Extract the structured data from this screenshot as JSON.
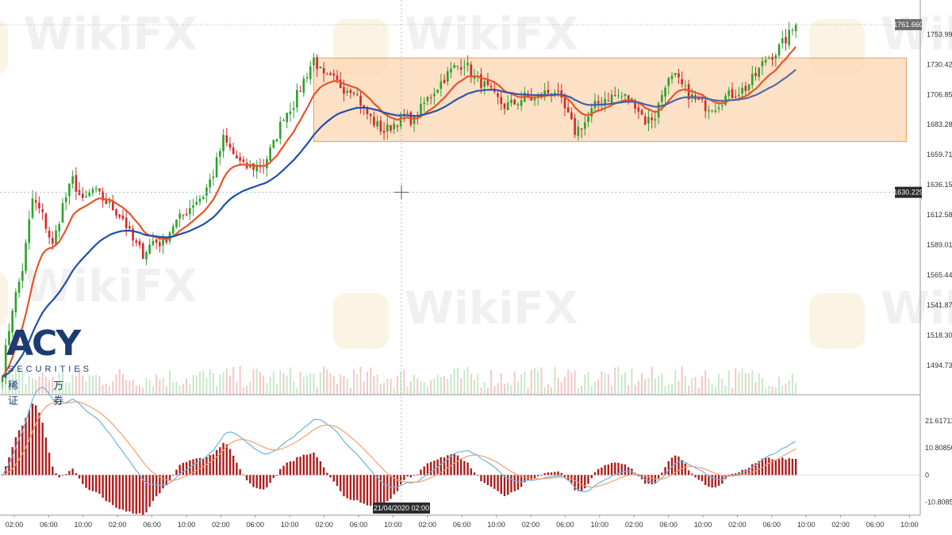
{
  "brand": {
    "logo_text": "ACY",
    "logo_subtitle": "SECURITIES",
    "logo_chinese": "稀 万 证 券",
    "watermark": "WikiFX"
  },
  "chart_data": {
    "type": "candlestick",
    "price_axis": {
      "min": 1471.6,
      "max": 1776.0,
      "tick_values": [
        1753.998,
        1730.428,
        1706.859,
        1683.289,
        1659.719,
        1636.15,
        1612.58,
        1589.011,
        1565.441,
        1541.871,
        1518.302,
        1494.732
      ],
      "tick_labels": [
        "1753.998",
        "1730.428",
        "1706.859",
        "1683.289",
        "1659.719",
        "1636.150",
        "1612.580",
        "1589.011",
        "1565.441",
        "1541.871",
        "1518.302",
        "1494.732"
      ],
      "current_price_label": "1761.660",
      "current_price": 1761.66,
      "crosshair_price_label": "1630.229",
      "crosshair_price": 1630.229
    },
    "macd_axis": {
      "min": -16.0,
      "max": 32.0,
      "tick_values": [
        21.61711,
        10.80856,
        0,
        -10.80856
      ],
      "tick_labels": [
        "21.61711",
        "10.80856",
        "0",
        "-10.80856"
      ]
    },
    "time_axis": {
      "labels": [
        "02:00",
        "06:00",
        "10:00",
        "02:00",
        "06:00",
        "10:00",
        "02:00",
        "06:00",
        "10:00",
        "02:00",
        "06:00",
        "10:00",
        "02:00",
        "06:00",
        "10:00",
        "02:00",
        "06:00",
        "10:00",
        "02:00",
        "06:00",
        "10:00",
        "02:00",
        "06:00",
        "10:00",
        "02:00",
        "06:00",
        "10:00"
      ],
      "crosshair_label": "21/04/2020  02:00",
      "bar_count": 238
    },
    "rectangle_zone": {
      "start_bar": 93,
      "end_bar": 270,
      "price_top": 1735.5,
      "price_bottom": 1670.0,
      "color": "#fbd7b3"
    },
    "waypoints": [
      [
        0,
        1490
      ],
      [
        3,
        1540
      ],
      [
        6,
        1570
      ],
      [
        9,
        1625
      ],
      [
        12,
        1612
      ],
      [
        15,
        1588
      ],
      [
        18,
        1620
      ],
      [
        21,
        1640
      ],
      [
        24,
        1622
      ],
      [
        27,
        1632
      ],
      [
        30,
        1625
      ],
      [
        33,
        1618
      ],
      [
        36,
        1610
      ],
      [
        39,
        1592
      ],
      [
        42,
        1582
      ],
      [
        45,
        1592
      ],
      [
        48,
        1590
      ],
      [
        51,
        1605
      ],
      [
        54,
        1612
      ],
      [
        57,
        1622
      ],
      [
        60,
        1628
      ],
      [
        63,
        1645
      ],
      [
        66,
        1672
      ],
      [
        69,
        1660
      ],
      [
        72,
        1650
      ],
      [
        75,
        1650
      ],
      [
        78,
        1652
      ],
      [
        81,
        1668
      ],
      [
        84,
        1690
      ],
      [
        87,
        1700
      ],
      [
        90,
        1718
      ],
      [
        93,
        1735
      ],
      [
        96,
        1720
      ],
      [
        99,
        1718
      ],
      [
        102,
        1712
      ],
      [
        105,
        1712
      ],
      [
        108,
        1695
      ],
      [
        111,
        1685
      ],
      [
        114,
        1678
      ],
      [
        117,
        1684
      ],
      [
        120,
        1690
      ],
      [
        123,
        1686
      ],
      [
        126,
        1700
      ],
      [
        129,
        1710
      ],
      [
        132,
        1720
      ],
      [
        135,
        1728
      ],
      [
        138,
        1732
      ],
      [
        141,
        1720
      ],
      [
        144,
        1714
      ],
      [
        147,
        1705
      ],
      [
        150,
        1698
      ],
      [
        153,
        1700
      ],
      [
        156,
        1705
      ],
      [
        159,
        1703
      ],
      [
        162,
        1708
      ],
      [
        165,
        1710
      ],
      [
        168,
        1695
      ],
      [
        171,
        1678
      ],
      [
        174,
        1685
      ],
      [
        177,
        1698
      ],
      [
        180,
        1704
      ],
      [
        183,
        1706
      ],
      [
        186,
        1705
      ],
      [
        189,
        1700
      ],
      [
        192,
        1686
      ],
      [
        195,
        1690
      ],
      [
        198,
        1716
      ],
      [
        201,
        1720
      ],
      [
        204,
        1710
      ],
      [
        207,
        1702
      ],
      [
        210,
        1698
      ],
      [
        213,
        1698
      ],
      [
        216,
        1705
      ],
      [
        219,
        1708
      ],
      [
        222,
        1712
      ],
      [
        225,
        1722
      ],
      [
        228,
        1735
      ],
      [
        231,
        1740
      ],
      [
        234,
        1750
      ],
      [
        237,
        1761
      ]
    ],
    "series": [
      {
        "name": "",
        "kind": "fast_ma",
        "period": 12,
        "color": "#e8552b"
      },
      {
        "name": "",
        "kind": "slow_ma",
        "period": 34,
        "color_start": "#1f4fa8",
        "color_end": "#5a6fa0"
      },
      {
        "name": "",
        "kind": "macd_line",
        "color": "#6ab4e0"
      },
      {
        "name": "",
        "kind": "signal_line",
        "color": "#f0a070"
      },
      {
        "name": "",
        "kind": "histogram",
        "color": "#b01c1c"
      }
    ],
    "colors": {
      "up": "#2ca02c",
      "down": "#d62728",
      "volume": "#f4c7c7",
      "grid": "#e2e2e2",
      "panel_border": "#9a9a9a"
    },
    "grid": false
  }
}
